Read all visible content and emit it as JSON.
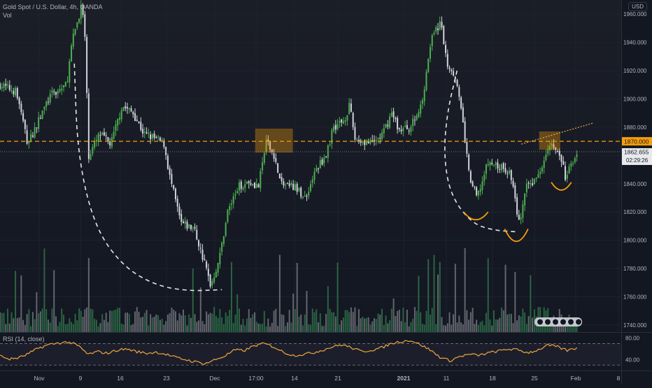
{
  "header": {
    "symbol_title": "Gold Spot / U.S. Dollar, 4h, OANDA",
    "volume_label": "Vol",
    "rsi_label": "RSI (14, close)",
    "currency": "USD"
  },
  "price_badges": {
    "level_price": "1870.000",
    "last_price": "1862.655",
    "countdown": "02:29:26"
  },
  "colors": {
    "background": "#131722",
    "up_candle": "#4caf50",
    "down_candle": "#d1d4dc",
    "level_line": "#f59e0b",
    "rsi_line": "#f0a640",
    "annotation_dash": "#e6e6e6",
    "highlight_box": "#f59e0b"
  },
  "chart_data": [
    {
      "type": "candlestick",
      "title": "Gold Spot / U.S. Dollar, 4h, OANDA",
      "x_ticks": [
        "Nov",
        "9",
        "16",
        "23",
        "Dec",
        "17:00",
        "14",
        "21",
        "2021",
        "11",
        "18",
        "25",
        "Feb",
        "8"
      ],
      "y_ticks": [
        1740,
        1760,
        1780,
        1800,
        1820,
        1840,
        1860,
        1880,
        1900,
        1920,
        1940,
        1960
      ],
      "ylim": [
        1735,
        1970
      ],
      "horizontal_level": 1870.0,
      "last_price": 1862.655,
      "close_path": [
        {
          "x": 0.0,
          "y": 1910
        },
        {
          "x": 1.5,
          "y": 1905
        },
        {
          "x": 2.5,
          "y": 1868
        },
        {
          "x": 3.5,
          "y": 1885
        },
        {
          "x": 4.5,
          "y": 1902
        },
        {
          "x": 6.0,
          "y": 1910
        },
        {
          "x": 6.5,
          "y": 1940
        },
        {
          "x": 7.3,
          "y": 1965
        },
        {
          "x": 7.6,
          "y": 1955
        },
        {
          "x": 8.0,
          "y": 1860
        },
        {
          "x": 9.0,
          "y": 1875
        },
        {
          "x": 10.0,
          "y": 1868
        },
        {
          "x": 11.0,
          "y": 1895
        },
        {
          "x": 12.0,
          "y": 1890
        },
        {
          "x": 13.0,
          "y": 1875
        },
        {
          "x": 14.0,
          "y": 1872
        },
        {
          "x": 14.8,
          "y": 1868
        },
        {
          "x": 15.3,
          "y": 1845
        },
        {
          "x": 16.3,
          "y": 1812
        },
        {
          "x": 17.5,
          "y": 1808
        },
        {
          "x": 18.5,
          "y": 1782
        },
        {
          "x": 19.0,
          "y": 1768
        },
        {
          "x": 19.8,
          "y": 1788
        },
        {
          "x": 20.5,
          "y": 1820
        },
        {
          "x": 21.5,
          "y": 1838
        },
        {
          "x": 22.5,
          "y": 1842
        },
        {
          "x": 23.3,
          "y": 1838
        },
        {
          "x": 24.0,
          "y": 1870
        },
        {
          "x": 24.7,
          "y": 1860
        },
        {
          "x": 25.3,
          "y": 1840
        },
        {
          "x": 26.5,
          "y": 1838
        },
        {
          "x": 27.5,
          "y": 1830
        },
        {
          "x": 28.5,
          "y": 1850
        },
        {
          "x": 29.5,
          "y": 1862
        },
        {
          "x": 30.0,
          "y": 1880
        },
        {
          "x": 31.0,
          "y": 1885
        },
        {
          "x": 31.5,
          "y": 1895
        },
        {
          "x": 32.0,
          "y": 1872
        },
        {
          "x": 33.5,
          "y": 1868
        },
        {
          "x": 34.5,
          "y": 1875
        },
        {
          "x": 35.3,
          "y": 1890
        },
        {
          "x": 36.0,
          "y": 1878
        },
        {
          "x": 37.0,
          "y": 1880
        },
        {
          "x": 38.0,
          "y": 1895
        },
        {
          "x": 38.8,
          "y": 1940
        },
        {
          "x": 39.7,
          "y": 1955
        },
        {
          "x": 40.3,
          "y": 1925
        },
        {
          "x": 41.0,
          "y": 1918
        },
        {
          "x": 41.7,
          "y": 1885
        },
        {
          "x": 42.3,
          "y": 1845
        },
        {
          "x": 43.0,
          "y": 1830
        },
        {
          "x": 44.0,
          "y": 1855
        },
        {
          "x": 45.0,
          "y": 1852
        },
        {
          "x": 46.0,
          "y": 1848
        },
        {
          "x": 46.8,
          "y": 1812
        },
        {
          "x": 47.5,
          "y": 1838
        },
        {
          "x": 48.5,
          "y": 1845
        },
        {
          "x": 49.5,
          "y": 1870
        },
        {
          "x": 50.0,
          "y": 1865
        },
        {
          "x": 50.7,
          "y": 1855
        },
        {
          "x": 51.0,
          "y": 1842
        },
        {
          "x": 51.5,
          "y": 1855
        },
        {
          "x": 52.0,
          "y": 1862
        }
      ],
      "highlight_boxes": [
        {
          "x_from": 23.0,
          "x_to": 26.4,
          "y_from": 1862,
          "y_to": 1879
        },
        {
          "x_from": 48.6,
          "x_to": 50.5,
          "y_from": 1864,
          "y_to": 1877
        }
      ],
      "cup_curves": [
        {
          "points": [
            [
              6.7,
              1925
            ],
            [
              7.0,
              1860
            ],
            [
              8.5,
              1810
            ],
            [
              11.0,
              1782
            ],
            [
              14.0,
              1768
            ],
            [
              17.0,
              1764
            ],
            [
              20.0,
              1765
            ]
          ]
        },
        {
          "points": [
            [
              41.2,
              1920
            ],
            [
              40.3,
              1890
            ],
            [
              40.0,
              1860
            ],
            [
              40.6,
              1832
            ],
            [
              42.5,
              1812
            ],
            [
              44.5,
              1807
            ],
            [
              46.5,
              1806
            ]
          ]
        }
      ],
      "small_arcs": [
        {
          "x_from": 41.8,
          "x_to": 44.0,
          "y_top": 1820,
          "y_bottom": 1815
        },
        {
          "x_from": 45.5,
          "x_to": 47.6,
          "y_top": 1808,
          "y_bottom": 1800
        },
        {
          "x_from": 49.7,
          "x_to": 51.5,
          "y_top": 1841,
          "y_bottom": 1836
        }
      ],
      "trendline": {
        "x_from": 47.0,
        "y_from": 1868,
        "x_to": 53.5,
        "y_to": 1883
      }
    },
    {
      "type": "bar",
      "title": "Vol"
    },
    {
      "type": "line",
      "title": "RSI (14, close)",
      "y_ticks": [
        40.0,
        80.0
      ],
      "ylim": [
        20,
        90
      ],
      "bands": [
        30,
        70
      ],
      "values": [
        47,
        41,
        44,
        52,
        62,
        68,
        71,
        73,
        66,
        50,
        55,
        52,
        58,
        60,
        55,
        52,
        54,
        50,
        44,
        40,
        36,
        33,
        40,
        47,
        58,
        57,
        66,
        70,
        64,
        54,
        48,
        50,
        53,
        58,
        64,
        68,
        62,
        55,
        58,
        62,
        70,
        74,
        76,
        68,
        58,
        45,
        38,
        46,
        50,
        48,
        53,
        56,
        60,
        58,
        53,
        58,
        67,
        64,
        57,
        62
      ]
    }
  ]
}
